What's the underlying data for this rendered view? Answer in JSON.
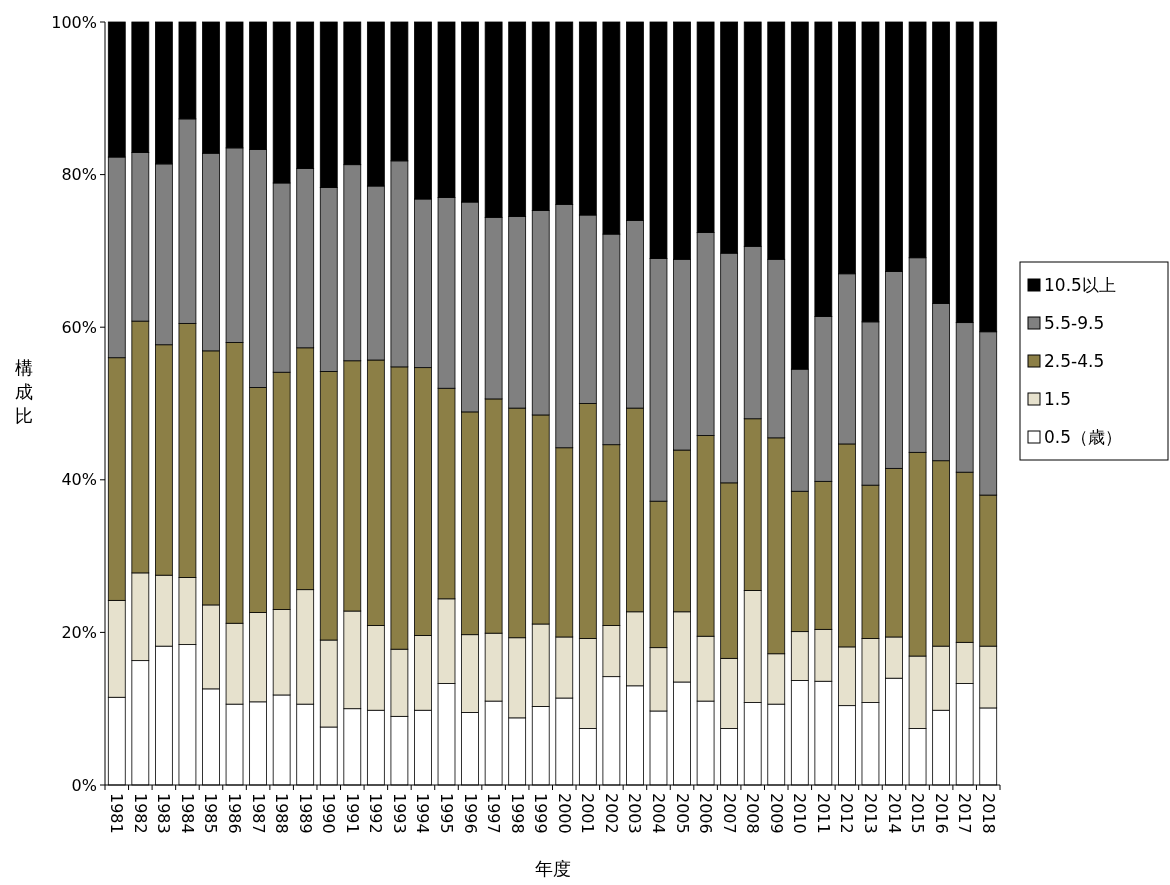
{
  "chart_data": {
    "type": "bar",
    "stacked": true,
    "xlabel": "年度",
    "ylabel": "構成比",
    "ylim": [
      0,
      100
    ],
    "yticks": [
      {
        "value": 0,
        "label": "0%"
      },
      {
        "value": 20,
        "label": "20%"
      },
      {
        "value": 40,
        "label": "40%"
      },
      {
        "value": 60,
        "label": "60%"
      },
      {
        "value": 80,
        "label": "80%"
      },
      {
        "value": 100,
        "label": "100%"
      }
    ],
    "legend": "right",
    "categories": [
      "1981",
      "1982",
      "1983",
      "1984",
      "1985",
      "1986",
      "1987",
      "1988",
      "1989",
      "1990",
      "1991",
      "1992",
      "1993",
      "1994",
      "1995",
      "1996",
      "1997",
      "1998",
      "1999",
      "2000",
      "2001",
      "2002",
      "2003",
      "2004",
      "2005",
      "2006",
      "2007",
      "2008",
      "2009",
      "2010",
      "2011",
      "2012",
      "2013",
      "2014",
      "2015",
      "2016",
      "2017",
      "2018"
    ],
    "series": [
      {
        "name": "0.5（歳）",
        "color": "#ffffff",
        "values": [
          11.5,
          16.3,
          18.2,
          18.4,
          12.6,
          10.6,
          10.9,
          11.8,
          10.6,
          7.6,
          10.0,
          9.8,
          9.0,
          9.8,
          13.3,
          9.5,
          11.0,
          8.8,
          10.3,
          11.4,
          7.4,
          14.2,
          13.0,
          9.7,
          13.5,
          11.0,
          7.4,
          10.8,
          10.6,
          13.7,
          13.6,
          10.4,
          10.8,
          14.0,
          7.4,
          9.8,
          13.3,
          10.1
        ]
      },
      {
        "name": "1.5",
        "color": "#e6e1cd",
        "values": [
          12.7,
          11.5,
          9.3,
          8.8,
          11.0,
          10.6,
          11.7,
          11.2,
          15.0,
          11.4,
          12.8,
          11.1,
          8.8,
          9.8,
          11.1,
          10.2,
          8.9,
          10.5,
          10.8,
          8.0,
          11.8,
          6.7,
          9.7,
          8.3,
          9.2,
          8.5,
          9.2,
          14.7,
          6.6,
          6.4,
          6.8,
          7.7,
          8.4,
          5.4,
          9.5,
          8.4,
          5.4,
          8.1
        ]
      },
      {
        "name": "2.5-4.5",
        "color": "#8c7f46",
        "values": [
          31.8,
          33.0,
          30.2,
          33.3,
          33.3,
          36.8,
          29.5,
          31.1,
          31.7,
          35.2,
          32.8,
          34.8,
          37.0,
          35.1,
          27.6,
          29.2,
          30.7,
          30.1,
          27.4,
          24.8,
          30.8,
          23.7,
          26.7,
          19.2,
          21.2,
          26.3,
          23.0,
          22.5,
          28.3,
          18.4,
          19.4,
          26.6,
          20.1,
          22.1,
          26.7,
          24.3,
          22.3,
          19.8
        ]
      },
      {
        "name": "5.5-9.5",
        "color": "#808080",
        "values": [
          26.3,
          22.1,
          23.7,
          26.8,
          25.9,
          25.5,
          31.2,
          24.8,
          23.5,
          24.1,
          25.7,
          22.8,
          27.0,
          22.1,
          25.0,
          27.5,
          23.8,
          25.1,
          26.8,
          31.9,
          24.7,
          27.6,
          24.6,
          31.8,
          25.0,
          26.6,
          30.1,
          22.6,
          23.4,
          16.0,
          21.6,
          22.3,
          21.4,
          25.8,
          25.5,
          20.6,
          19.6,
          21.4
        ]
      },
      {
        "name": "10.5以上",
        "color": "#000000",
        "values": [
          17.7,
          17.1,
          18.6,
          12.7,
          17.2,
          16.5,
          16.7,
          21.1,
          19.2,
          21.7,
          18.7,
          21.5,
          18.2,
          23.2,
          23.0,
          23.6,
          25.6,
          25.5,
          24.7,
          23.9,
          25.3,
          27.8,
          26.0,
          31.0,
          31.1,
          27.6,
          30.3,
          29.4,
          31.1,
          45.5,
          38.6,
          33.0,
          39.3,
          32.7,
          30.9,
          36.9,
          39.4,
          40.6
        ]
      }
    ]
  }
}
